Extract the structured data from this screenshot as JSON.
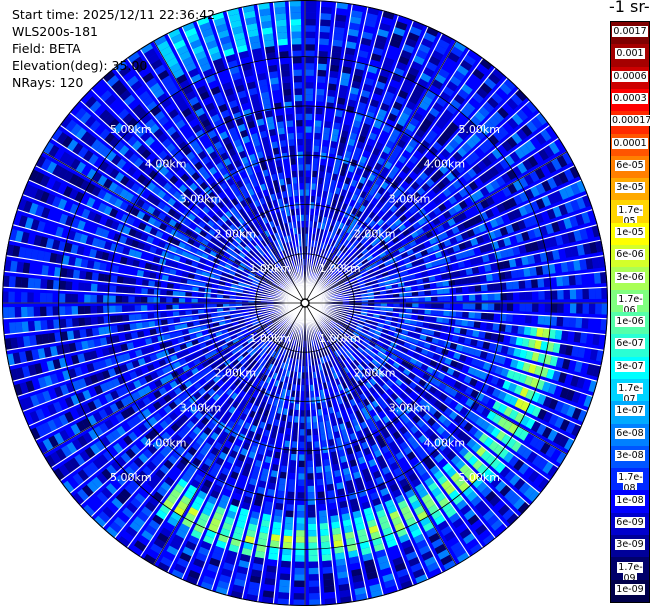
{
  "header": {
    "start_time": "Start time: 2025/12/11 22:36:42",
    "instrument": "WLS200s-181",
    "field": "Field: BETA",
    "elevation": "Elevation(deg): 35.00",
    "nrays": "NRays: 120"
  },
  "colorbar": {
    "unit_label": "-1 sr-",
    "ticks": [
      "0.0017",
      "0.001",
      "0.0006",
      "0.0003",
      "0.00017",
      "0.0001",
      "6e-05",
      "3e-05",
      "1.7e-05",
      "1e-05",
      "6e-06",
      "3e-06",
      "1.7e-06",
      "1e-06",
      "6e-07",
      "3e-07",
      "1.7e-07",
      "1e-07",
      "6e-08",
      "3e-08",
      "1.7e-08",
      "1e-08",
      "6e-09",
      "3e-09",
      "1.7e-09",
      "1e-09"
    ],
    "colors": [
      "#7f0000",
      "#a50000",
      "#cc0000",
      "#ff0000",
      "#ff2a00",
      "#ff5500",
      "#ff8000",
      "#ffaa00",
      "#ffd500",
      "#ffff00",
      "#d4ff2a",
      "#aaff55",
      "#80ff80",
      "#55ffaa",
      "#2affd4",
      "#00ffff",
      "#00d4ff",
      "#00aaff",
      "#0080ff",
      "#0055ff",
      "#002aff",
      "#0000ff",
      "#0000cc",
      "#000099",
      "#00006a",
      "#00004a"
    ]
  },
  "chart_data": {
    "type": "heatmap",
    "projection": "polar PPI",
    "field": "BETA",
    "elevation_deg": 35.0,
    "n_rays": 120,
    "range_rings_km": [
      1.0,
      2.0,
      3.0,
      4.0,
      5.0
    ],
    "range_ring_labels": [
      "1.00km",
      "2.00km",
      "3.00km",
      "4.00km",
      "5.00km"
    ],
    "max_range_km": 6.15,
    "color_scale": "log",
    "value_range": [
      1e-09,
      0.0017
    ],
    "background_level": 1e-08,
    "features": [
      {
        "name": "enhanced ring",
        "range_km": [
          4.6,
          5.1
        ],
        "azimuth_deg": [
          95,
          215
        ],
        "peak_value": 1e-05
      }
    ]
  }
}
